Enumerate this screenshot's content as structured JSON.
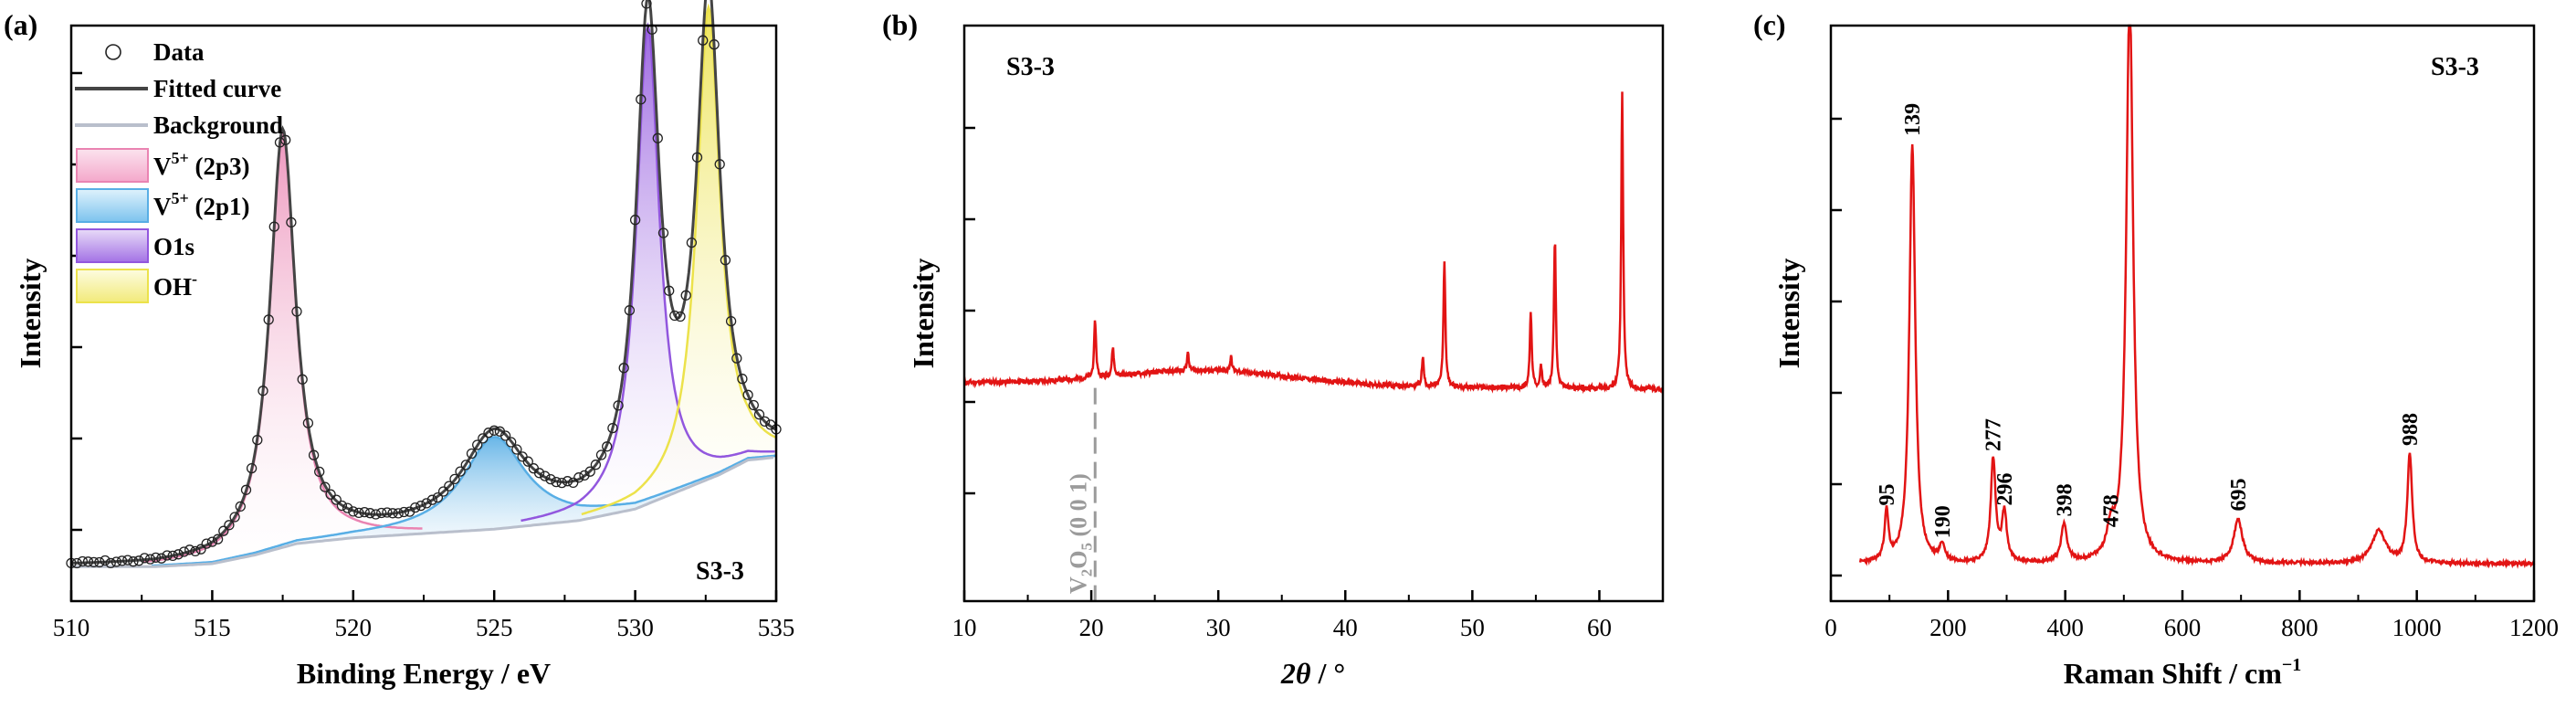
{
  "chart_data": [
    {
      "type": "line",
      "panel_label": "(a)",
      "sample_label": "S3-3",
      "xlabel": "Binding Energy / eV",
      "ylabel": "Intensity",
      "xlim": [
        510,
        535
      ],
      "x_ticks": [
        510,
        515,
        520,
        525,
        530,
        535
      ],
      "y_ticks_shown": false,
      "legend_placement": "top-left",
      "legend": [
        {
          "label": "Data",
          "marker": "open-circle",
          "color": "#222222"
        },
        {
          "label": "Fitted curve",
          "marker": "line",
          "color": "#444444"
        },
        {
          "label": "Background",
          "marker": "line",
          "color": "#b9bfcc"
        },
        {
          "label_main": "V",
          "label_sup": "5+",
          "label_tail": " (2p3)",
          "fill": "#f7c7dc",
          "stroke": "#ea84b2"
        },
        {
          "label_main": "V",
          "label_sup": "5+",
          "label_tail": " (2p1)",
          "fill": "#a9d9f5",
          "stroke": "#58aee5"
        },
        {
          "label_main": "O1s",
          "label_sup": "",
          "label_tail": "",
          "fill": "#c9a7ef",
          "stroke": "#9257de"
        },
        {
          "label_main": "OH",
          "label_sup": "-",
          "label_tail": "",
          "fill": "#f8f6b4",
          "stroke": "#ece24b"
        }
      ],
      "background": {
        "x": [
          510,
          513,
          515,
          516.5,
          518,
          520,
          525,
          528,
          530,
          531.5,
          533,
          534,
          535
        ],
        "y": [
          0.06,
          0.06,
          0.065,
          0.08,
          0.1,
          0.11,
          0.125,
          0.14,
          0.16,
          0.19,
          0.22,
          0.245,
          0.25
        ]
      },
      "components": [
        {
          "name": "V5+ (2p3)",
          "center": 517.5,
          "amplitude": 0.72,
          "width": 0.55,
          "color": "#ea84b2"
        },
        {
          "name": "V5+ (2p1)",
          "center": 525.0,
          "amplitude": 0.16,
          "width": 1.35,
          "color": "#58aee5"
        },
        {
          "name": "O1s",
          "center": 530.45,
          "amplitude": 0.83,
          "width": 0.5,
          "color": "#9257de"
        },
        {
          "name": "OH-",
          "center": 532.6,
          "amplitude": 0.82,
          "width": 0.5,
          "color": "#ece24b"
        }
      ],
      "data_points_spacing": 0.2
    },
    {
      "type": "line",
      "panel_label": "(b)",
      "sample_label": "S3-3",
      "xlabel_italic": "2θ",
      "xlabel_tail": " / °",
      "ylabel": "Intensity",
      "xlim": [
        10,
        65
      ],
      "x_ticks": [
        10,
        20,
        30,
        40,
        50,
        60
      ],
      "y_ticks_shown": false,
      "color": "#e21414",
      "baseline": 0.38,
      "peaks": [
        {
          "x": 20.3,
          "height": 0.1
        },
        {
          "x": 21.7,
          "height": 0.05
        },
        {
          "x": 27.6,
          "height": 0.03
        },
        {
          "x": 31.0,
          "height": 0.025
        },
        {
          "x": 46.1,
          "height": 0.05
        },
        {
          "x": 47.8,
          "height": 0.22
        },
        {
          "x": 54.6,
          "height": 0.13
        },
        {
          "x": 55.4,
          "height": 0.04
        },
        {
          "x": 56.5,
          "height": 0.26
        },
        {
          "x": 61.8,
          "height": 0.52
        }
      ],
      "reference_line": {
        "x": 20.3,
        "label_main": "V",
        "label_sub1": "2",
        "label_mid": "O",
        "label_sub2": "5",
        "label_tail": " (0 0 1)",
        "color": "#9b9b9b"
      }
    },
    {
      "type": "line",
      "panel_label": "(c)",
      "sample_label": "S3-3",
      "xlabel": "Raman Shift / cm",
      "xlabel_sup": "−1",
      "ylabel": "Intensity",
      "xlim": [
        0,
        1200
      ],
      "x_ticks": [
        0,
        200,
        400,
        600,
        800,
        1000,
        1200
      ],
      "y_ticks_shown": false,
      "color": "#e21414",
      "baseline": 0.01,
      "peaks": [
        {
          "x": 95,
          "height": 0.09,
          "label": "95"
        },
        {
          "x": 139,
          "height": 0.77,
          "label": "139"
        },
        {
          "x": 190,
          "height": 0.03,
          "label": "190"
        },
        {
          "x": 277,
          "height": 0.19,
          "label": "277"
        },
        {
          "x": 296,
          "height": 0.09,
          "label": "296"
        },
        {
          "x": 398,
          "height": 0.07,
          "label": "398"
        },
        {
          "x": 478,
          "height": 0.05,
          "label": "478"
        },
        {
          "x": 510,
          "height": 1.05,
          "label": ""
        },
        {
          "x": 695,
          "height": 0.08,
          "label": "695"
        },
        {
          "x": 935,
          "height": 0.06,
          "label": ""
        },
        {
          "x": 988,
          "height": 0.2,
          "label": "988"
        }
      ]
    }
  ]
}
